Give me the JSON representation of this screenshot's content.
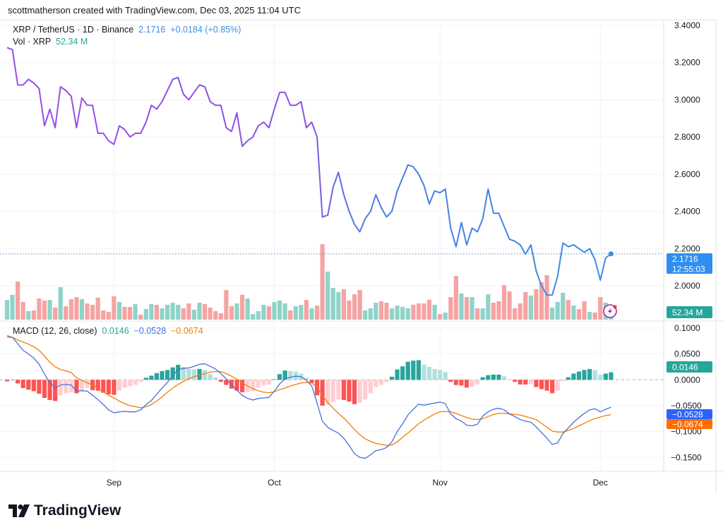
{
  "attribution": "scottmatherson created with TradingView.com, Dec 03, 2025 11:04 UTC",
  "legend": {
    "symbol": "XRP / TetherUS · 1D · Binance",
    "price": "2.1716",
    "change": "+0.0184 (+0.85%)",
    "vol_label": "Vol · XRP",
    "vol_value": "52.34 M"
  },
  "macd_legend": {
    "label": "MACD (12, 26, close)",
    "histogram": "0.0146",
    "macd": "−0.0528",
    "signal": "−0.0674"
  },
  "tags": {
    "price": "2.1716",
    "countdown": "12:55:03",
    "volume": "52.34 M",
    "histogram": "0.0146",
    "macd": "−0.0528",
    "signal": "−0.0674"
  },
  "logo_text": "TradingView",
  "colors": {
    "price_line_start": "#9a4de8",
    "price_line_end": "#3a8ee6",
    "up": "#26a69a",
    "down": "#ef5350",
    "vol_up": "#8fd3c8",
    "vol_down": "#f5a3a3",
    "macd": "#4a6fe0",
    "signal": "#f57c00",
    "hist_up_strong": "#26a69a",
    "hist_up_weak": "#b2dfdb",
    "hist_down_strong": "#ff5252",
    "hist_down_weak": "#ffcdd2",
    "price_tag": "#2e8ff0",
    "macd_tag": "#2962ff",
    "signal_tag": "#ff6d00"
  },
  "chart_data": {
    "type": "line",
    "symbol": "XRP / TetherUS",
    "interval": "1D",
    "date_range": [
      "2025-08-12",
      "2025-12-03"
    ],
    "x_ticks": [
      "Sep",
      "Oct",
      "Nov",
      "Dec"
    ],
    "price_axis": {
      "ticks": [
        "3.4000",
        "3.2000",
        "3.0000",
        "2.8000",
        "2.6000",
        "2.4000",
        "2.2000",
        "2.0000"
      ],
      "range": [
        1.83,
        3.4
      ]
    },
    "close": [
      3.28,
      3.27,
      3.08,
      3.08,
      3.11,
      3.09,
      3.06,
      2.86,
      2.95,
      2.85,
      3.07,
      3.05,
      3.02,
      2.85,
      3.01,
      2.97,
      2.97,
      2.82,
      2.82,
      2.78,
      2.76,
      2.86,
      2.84,
      2.8,
      2.82,
      2.82,
      2.88,
      2.97,
      2.95,
      2.99,
      3.05,
      3.11,
      3.12,
      3.03,
      3.0,
      3.04,
      3.08,
      3.07,
      2.99,
      2.97,
      2.97,
      2.85,
      2.83,
      2.93,
      2.75,
      2.78,
      2.8,
      2.86,
      2.88,
      2.85,
      2.95,
      3.04,
      3.04,
      2.97,
      2.97,
      2.99,
      2.85,
      2.88,
      2.8,
      2.37,
      2.38,
      2.53,
      2.61,
      2.49,
      2.4,
      2.33,
      2.29,
      2.36,
      2.4,
      2.49,
      2.42,
      2.37,
      2.4,
      2.51,
      2.58,
      2.65,
      2.64,
      2.6,
      2.54,
      2.44,
      2.51,
      2.5,
      2.52,
      2.31,
      2.21,
      2.34,
      2.22,
      2.31,
      2.29,
      2.36,
      2.52,
      2.39,
      2.39,
      2.32,
      2.25,
      2.24,
      2.22,
      2.17,
      2.22,
      2.08,
      2.0,
      1.95,
      1.95,
      2.05,
      2.23,
      2.21,
      2.22,
      2.2,
      2.18,
      2.2,
      2.14,
      2.03,
      2.15,
      2.1716
    ],
    "volume_millions": [
      133,
      167,
      257,
      119,
      57,
      62,
      143,
      129,
      133,
      81,
      219,
      90,
      138,
      152,
      138,
      109,
      100,
      148,
      62,
      52,
      157,
      119,
      86,
      86,
      105,
      33,
      71,
      105,
      100,
      76,
      100,
      114,
      100,
      76,
      109,
      67,
      114,
      105,
      81,
      57,
      43,
      200,
      90,
      109,
      167,
      143,
      38,
      57,
      100,
      90,
      119,
      129,
      109,
      62,
      90,
      100,
      133,
      76,
      95,
      509,
      324,
      214,
      186,
      205,
      129,
      171,
      200,
      62,
      76,
      114,
      124,
      114,
      76,
      95,
      86,
      76,
      100,
      109,
      109,
      133,
      100,
      38,
      48,
      152,
      295,
      176,
      152,
      152,
      76,
      76,
      171,
      114,
      124,
      233,
      190,
      76,
      109,
      186,
      162,
      205,
      252,
      300,
      81,
      119,
      181,
      133,
      95,
      71,
      124,
      52,
      48,
      152,
      114,
      52.34
    ],
    "volume_direction": "UUDDUDDDUDUDDDUDDDDDDUDDUDUUDUUUUDDUUDDDDDDUDUUUUDUUUDUUDUDDUUUDDDDUUUDDUUUUDDDDUDUDDUDUDUUDDDDDDDUDDDUUUDUDDUDDUU",
    "macd_axis": {
      "ticks": [
        "0.1000",
        "0.0500",
        "0.0000",
        "−0.0500",
        "−0.1000",
        "−0.1500"
      ],
      "range": [
        -0.178,
        0.1
      ]
    },
    "macd": [
      0.083,
      0.082,
      0.07,
      0.057,
      0.05,
      0.042,
      0.03,
      0.011,
      -0.005,
      -0.016,
      -0.01,
      -0.009,
      -0.01,
      -0.022,
      -0.021,
      -0.022,
      -0.03,
      -0.038,
      -0.048,
      -0.058,
      -0.064,
      -0.062,
      -0.061,
      -0.062,
      -0.062,
      -0.058,
      -0.048,
      -0.04,
      -0.028,
      -0.016,
      -0.005,
      0.008,
      0.02,
      0.022,
      0.023,
      0.026,
      0.03,
      0.031,
      0.026,
      0.021,
      0.012,
      0.002,
      -0.01,
      -0.02,
      -0.03,
      -0.036,
      -0.039,
      -0.036,
      -0.035,
      -0.034,
      -0.022,
      -0.008,
      0.002,
      0.005,
      0.007,
      0.006,
      -0.001,
      -0.012,
      -0.045,
      -0.08,
      -0.092,
      -0.098,
      -0.103,
      -0.113,
      -0.127,
      -0.143,
      -0.15,
      -0.152,
      -0.145,
      -0.137,
      -0.135,
      -0.131,
      -0.12,
      -0.1,
      -0.085,
      -0.068,
      -0.057,
      -0.047,
      -0.049,
      -0.047,
      -0.045,
      -0.043,
      -0.046,
      -0.066,
      -0.075,
      -0.08,
      -0.088,
      -0.089,
      -0.086,
      -0.07,
      -0.062,
      -0.057,
      -0.055,
      -0.058,
      -0.066,
      -0.071,
      -0.077,
      -0.08,
      -0.082,
      -0.091,
      -0.102,
      -0.113,
      -0.125,
      -0.122,
      -0.104,
      -0.093,
      -0.082,
      -0.073,
      -0.065,
      -0.058,
      -0.056,
      -0.062,
      -0.057,
      -0.0528
    ],
    "signal": [
      0.086,
      0.082,
      0.077,
      0.073,
      0.069,
      0.064,
      0.057,
      0.046,
      0.034,
      0.025,
      0.02,
      0.017,
      0.014,
      0.004,
      -0.001,
      -0.006,
      -0.01,
      -0.017,
      -0.023,
      -0.03,
      -0.035,
      -0.041,
      -0.046,
      -0.05,
      -0.052,
      -0.054,
      -0.052,
      -0.048,
      -0.041,
      -0.033,
      -0.024,
      -0.016,
      -0.009,
      -0.003,
      0.002,
      0.006,
      0.009,
      0.012,
      0.015,
      0.016,
      0.016,
      0.012,
      0.007,
      0.001,
      -0.006,
      -0.012,
      -0.017,
      -0.021,
      -0.024,
      -0.025,
      -0.023,
      -0.019,
      -0.016,
      -0.012,
      -0.009,
      -0.006,
      -0.005,
      -0.006,
      -0.015,
      -0.03,
      -0.044,
      -0.055,
      -0.065,
      -0.074,
      -0.085,
      -0.096,
      -0.106,
      -0.114,
      -0.119,
      -0.123,
      -0.125,
      -0.127,
      -0.126,
      -0.12,
      -0.111,
      -0.103,
      -0.094,
      -0.085,
      -0.078,
      -0.072,
      -0.066,
      -0.062,
      -0.061,
      -0.062,
      -0.065,
      -0.069,
      -0.073,
      -0.076,
      -0.077,
      -0.075,
      -0.071,
      -0.067,
      -0.065,
      -0.065,
      -0.066,
      -0.067,
      -0.068,
      -0.071,
      -0.074,
      -0.077,
      -0.084,
      -0.092,
      -0.099,
      -0.101,
      -0.101,
      -0.098,
      -0.094,
      -0.089,
      -0.084,
      -0.079,
      -0.075,
      -0.072,
      -0.069,
      -0.0674
    ]
  }
}
